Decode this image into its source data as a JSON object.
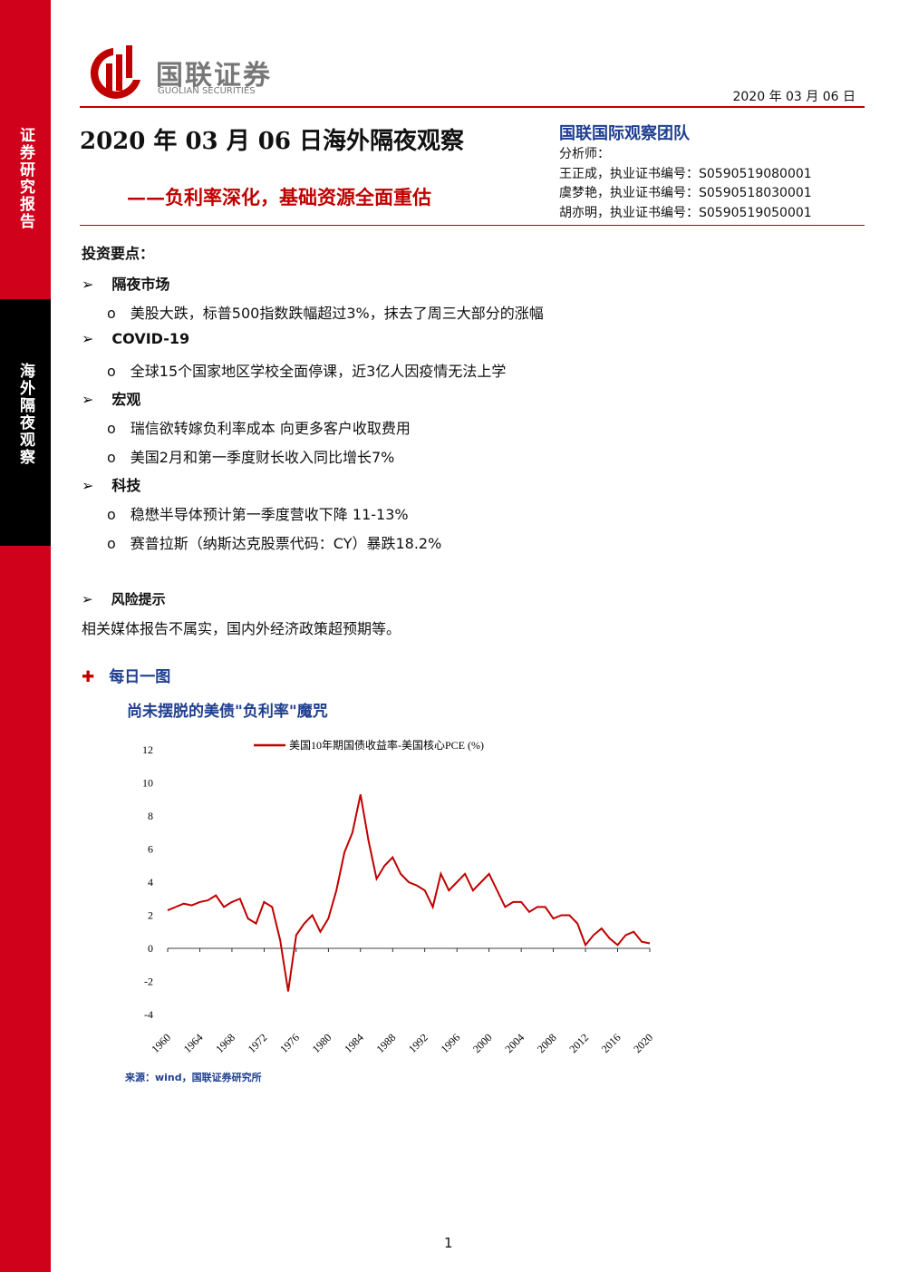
{
  "header": {
    "company_cn": "国联证券",
    "company_en": "GUOLIAN SECURITIES",
    "date": "2020 年 03 月 06 日"
  },
  "side": {
    "top": "证券研究报告",
    "middle": "海外隔夜观察"
  },
  "title": "2020 年 03 月 06 日海外隔夜观察",
  "subtitle": "——负利率深化，基础资源全面重估",
  "team": {
    "name": "国联国际观察团队",
    "label": "分析师：",
    "analysts": [
      "王正成，执业证书编号：S0590519080001",
      "虞梦艳，执业证书编号：S0590518030001",
      "胡亦明，执业证书编号：S0590519050001"
    ]
  },
  "key_points": {
    "heading": "投资要点：",
    "sections": [
      {
        "heading": "隔夜市场",
        "items": [
          "美股大跌，标普500指数跌幅超过3%，抹去了周三大部分的涨幅"
        ]
      },
      {
        "heading": "COVID-19",
        "items": [
          "全球15个国家地区学校全面停课，近3亿人因疫情无法上学"
        ]
      },
      {
        "heading": "宏观",
        "items": [
          "瑞信欲转嫁负利率成本 向更多客户收取费用",
          "美国2月和第一季度财长收入同比增长7%"
        ]
      },
      {
        "heading": "科技",
        "items": [
          "稳懋半导体预计第一季度营收下降 11-13%",
          "赛普拉斯（纳斯达克股票代码：CY）暴跌18.2%"
        ]
      }
    ]
  },
  "risk": {
    "heading": "风险提示",
    "text": "相关媒体报告不属实，国内外经济政策超预期等。"
  },
  "daily_chart": {
    "heading": "每日一图",
    "title": "尚未摆脱的美债\"负利率\"魔咒",
    "source": "来源：wind，国联证券研究所"
  },
  "chart_data": {
    "type": "line",
    "x": [
      1960,
      1961,
      1962,
      1963,
      1964,
      1965,
      1966,
      1967,
      1968,
      1969,
      1970,
      1971,
      1972,
      1973,
      1974,
      1975,
      1976,
      1977,
      1978,
      1979,
      1980,
      1981,
      1982,
      1983,
      1984,
      1985,
      1986,
      1987,
      1988,
      1989,
      1990,
      1991,
      1992,
      1993,
      1994,
      1995,
      1996,
      1997,
      1998,
      1999,
      2000,
      2001,
      2002,
      2003,
      2004,
      2005,
      2006,
      2007,
      2008,
      2009,
      2010,
      2011,
      2012,
      2013,
      2014,
      2015,
      2016,
      2017,
      2018,
      2019,
      2020
    ],
    "series": [
      {
        "name": "美国10年期国债收益率-美国核心PCE (%)",
        "color": "#c00000",
        "values": [
          2.3,
          2.5,
          2.7,
          2.6,
          2.8,
          2.9,
          3.2,
          2.5,
          2.8,
          3.0,
          1.8,
          1.5,
          2.8,
          2.5,
          0.5,
          -2.6,
          0.8,
          1.5,
          2.0,
          1.0,
          1.8,
          3.5,
          5.8,
          7.0,
          9.3,
          6.5,
          4.2,
          5.0,
          5.5,
          4.5,
          4.0,
          3.8,
          3.5,
          2.5,
          4.5,
          3.5,
          4.0,
          4.5,
          3.5,
          4.0,
          4.5,
          3.5,
          2.5,
          2.8,
          2.8,
          2.2,
          2.5,
          2.5,
          1.8,
          2.0,
          2.0,
          1.5,
          0.2,
          0.8,
          1.2,
          0.6,
          0.2,
          0.8,
          1.0,
          0.4,
          0.3
        ]
      }
    ],
    "xlim": [
      1960,
      2020
    ],
    "xticks": [
      1960,
      1964,
      1968,
      1972,
      1976,
      1980,
      1984,
      1988,
      1992,
      1996,
      2000,
      2004,
      2008,
      2012,
      2016,
      2020
    ],
    "ylim": [
      -4,
      12
    ],
    "yticks": [
      -4,
      -2,
      0,
      2,
      4,
      6,
      8,
      10,
      12
    ]
  },
  "page_number": "1"
}
